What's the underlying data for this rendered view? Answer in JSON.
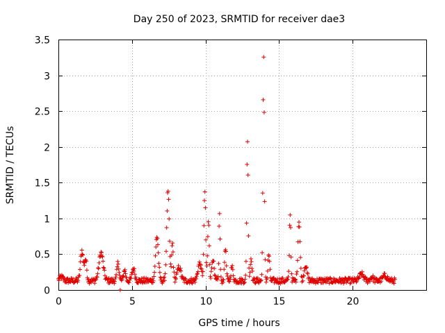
{
  "chart_data": {
    "type": "scatter",
    "title": "Day 250 of 2023, SRMTID for receiver dae3",
    "xlabel": "GPS time / hours",
    "ylabel": "SRMTID / TECUs",
    "xlim": [
      0,
      25
    ],
    "ylim": [
      0,
      3.5
    ],
    "xticks": [
      0,
      5,
      10,
      15,
      20
    ],
    "xtick_labels": [
      "0",
      "5",
      "10",
      "15",
      "20"
    ],
    "yticks": [
      0,
      0.5,
      1,
      1.5,
      2,
      2.5,
      3,
      3.5
    ],
    "ytick_labels": [
      "0",
      "0.5",
      "1",
      "1.5",
      "2",
      "2.5",
      "3",
      "3.5"
    ],
    "grid": true,
    "marker": "+",
    "color": "#e00000",
    "sample_interval_hours": 0.0333,
    "series": [
      {
        "name": "SRMTID",
        "x_start": 0.0,
        "x_end": 22.9,
        "baseline": 0.13,
        "peaks": [
          {
            "x": 0.2,
            "y": 0.18,
            "width": 0.25
          },
          {
            "x": 1.6,
            "y": 0.55,
            "width": 0.2
          },
          {
            "x": 1.85,
            "y": 0.42,
            "width": 0.15
          },
          {
            "x": 2.9,
            "y": 0.52,
            "width": 0.3
          },
          {
            "x": 4.05,
            "y": 0.38,
            "width": 0.15
          },
          {
            "x": 4.5,
            "y": 0.28,
            "width": 0.15
          },
          {
            "x": 5.1,
            "y": 0.3,
            "width": 0.2
          },
          {
            "x": 6.7,
            "y": 0.75,
            "width": 0.2
          },
          {
            "x": 7.45,
            "y": 1.37,
            "width": 0.18
          },
          {
            "x": 7.75,
            "y": 0.65,
            "width": 0.12
          },
          {
            "x": 8.2,
            "y": 0.32,
            "width": 0.25
          },
          {
            "x": 9.6,
            "y": 0.37,
            "width": 0.25
          },
          {
            "x": 9.95,
            "y": 1.38,
            "width": 0.12
          },
          {
            "x": 10.2,
            "y": 0.95,
            "width": 0.12
          },
          {
            "x": 10.5,
            "y": 0.45,
            "width": 0.15
          },
          {
            "x": 10.95,
            "y": 1.09,
            "width": 0.08
          },
          {
            "x": 11.35,
            "y": 0.6,
            "width": 0.12
          },
          {
            "x": 11.8,
            "y": 0.32,
            "width": 0.15
          },
          {
            "x": 12.85,
            "y": 2.1,
            "width": 0.1
          },
          {
            "x": 13.1,
            "y": 0.45,
            "width": 0.12
          },
          {
            "x": 13.95,
            "y": 3.23,
            "width": 0.1
          },
          {
            "x": 14.3,
            "y": 0.5,
            "width": 0.12
          },
          {
            "x": 15.75,
            "y": 1.08,
            "width": 0.1
          },
          {
            "x": 16.35,
            "y": 0.98,
            "width": 0.15
          },
          {
            "x": 16.8,
            "y": 0.35,
            "width": 0.2
          },
          {
            "x": 20.6,
            "y": 0.22,
            "width": 0.3
          },
          {
            "x": 21.3,
            "y": 0.18,
            "width": 0.2
          },
          {
            "x": 22.2,
            "y": 0.2,
            "width": 0.3
          }
        ],
        "outliers": [
          {
            "x": 4.2,
            "y": 0.0
          }
        ]
      }
    ]
  }
}
